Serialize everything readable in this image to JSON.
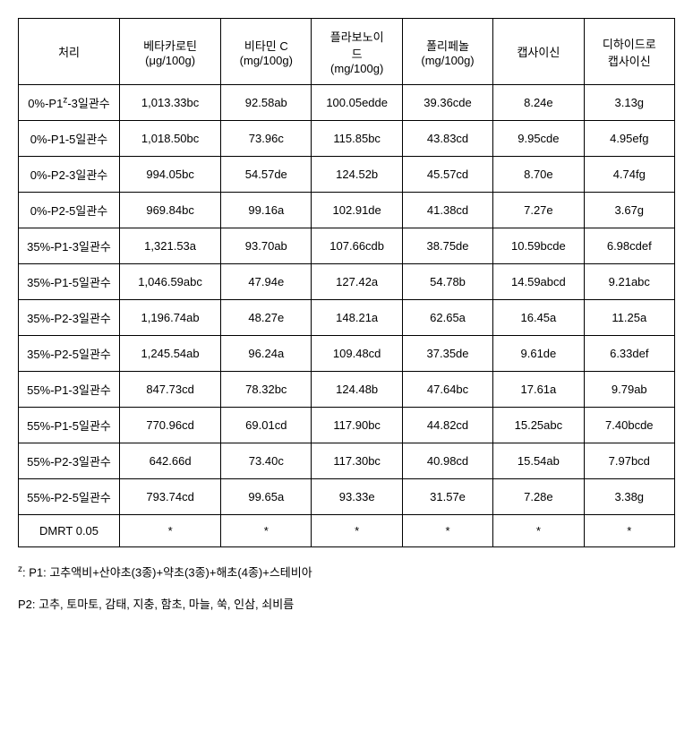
{
  "table": {
    "columns": [
      {
        "label": "처리"
      },
      {
        "label_line1": "베타카로틴",
        "label_line2": "(μg/100g)"
      },
      {
        "label_line1": "비타민 C",
        "label_line2": "(mg/100g)"
      },
      {
        "label_line1": "플라보노이",
        "label_line2": "드",
        "label_line3": "(mg/100g)"
      },
      {
        "label_line1": "폴리페놀",
        "label_line2": "(mg/100g)"
      },
      {
        "label": "캡사이신"
      },
      {
        "label_line1": "디하이드로",
        "label_line2": "캡사이신"
      }
    ],
    "rows": [
      {
        "treatment_pre": "0%-P1",
        "treatment_sup": "z",
        "treatment_post": "-3일관수",
        "values": [
          "1,013.33bc",
          "92.58ab",
          "100.05edde",
          "39.36cde",
          "8.24e",
          "3.13g"
        ]
      },
      {
        "treatment": "0%-P1-5일관수",
        "values": [
          "1,018.50bc",
          "73.96c",
          "115.85bc",
          "43.83cd",
          "9.95cde",
          "4.95efg"
        ]
      },
      {
        "treatment": "0%-P2-3일관수",
        "values": [
          "994.05bc",
          "54.57de",
          "124.52b",
          "45.57cd",
          "8.70e",
          "4.74fg"
        ]
      },
      {
        "treatment": "0%-P2-5일관수",
        "values": [
          "969.84bc",
          "99.16a",
          "102.91de",
          "41.38cd",
          "7.27e",
          "3.67g"
        ]
      },
      {
        "treatment": "35%-P1-3일관수",
        "values": [
          "1,321.53a",
          "93.70ab",
          "107.66cdb",
          "38.75de",
          "10.59bcde",
          "6.98cdef"
        ]
      },
      {
        "treatment": "35%-P1-5일관수",
        "values": [
          "1,046.59abc",
          "47.94e",
          "127.42a",
          "54.78b",
          "14.59abcd",
          "9.21abc"
        ]
      },
      {
        "treatment": "35%-P2-3일관수",
        "values": [
          "1,196.74ab",
          "48.27e",
          "148.21a",
          "62.65a",
          "16.45a",
          "11.25a"
        ]
      },
      {
        "treatment": "35%-P2-5일관수",
        "values": [
          "1,245.54ab",
          "96.24a",
          "109.48cd",
          "37.35de",
          "9.61de",
          "6.33def"
        ]
      },
      {
        "treatment": "55%-P1-3일관수",
        "values": [
          "847.73cd",
          "78.32bc",
          "124.48b",
          "47.64bc",
          "17.61a",
          "9.79ab"
        ]
      },
      {
        "treatment": "55%-P1-5일관수",
        "values": [
          "770.96cd",
          "69.01cd",
          "117.90bc",
          "44.82cd",
          "15.25abc",
          "7.40bcde"
        ]
      },
      {
        "treatment": "55%-P2-3일관수",
        "values": [
          "642.66d",
          "73.40c",
          "117.30bc",
          "40.98cd",
          "15.54ab",
          "7.97bcd"
        ]
      },
      {
        "treatment": "55%-P2-5일관수",
        "values": [
          "793.74cd",
          "99.65a",
          "93.33e",
          "31.57e",
          "7.28e",
          "3.38g"
        ]
      },
      {
        "treatment": "DMRT 0.05",
        "values": [
          "*",
          "*",
          "*",
          "*",
          "*",
          "*"
        ]
      }
    ]
  },
  "footnotes": [
    {
      "sup": "z",
      "pre": ": P1: 고추액비+산야초(3종)+약초(3종)+해초(4종)+스테비아"
    },
    {
      "text": "P2: 고추, 토마토, 감태, 지충, 함초, 마늘, 쑥, 인삼, 쇠비름"
    }
  ]
}
